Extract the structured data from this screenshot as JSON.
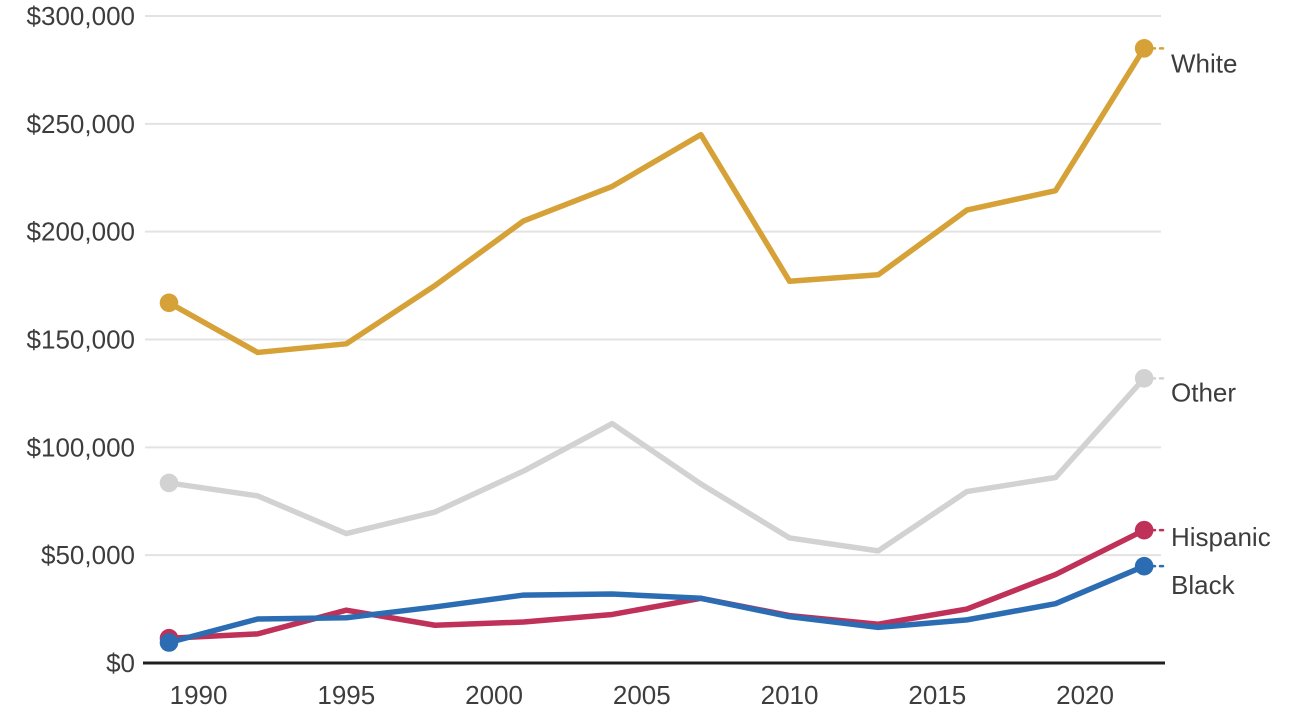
{
  "chart_data": {
    "type": "line",
    "title": "",
    "xlabel": "",
    "ylabel": "",
    "unit_format": "$#,###",
    "x": [
      1989,
      1992,
      1995,
      1998,
      2001,
      2004,
      2007,
      2010,
      2013,
      2016,
      2019,
      2022
    ],
    "series": [
      {
        "name": "White",
        "color": "#D6A136",
        "values": [
          167000,
          144000,
          148000,
          175000,
          205000,
          221000,
          245000,
          177000,
          180000,
          210000,
          219000,
          285000
        ]
      },
      {
        "name": "Other",
        "color": "#D2D2D2",
        "values": [
          83500,
          77500,
          60000,
          70000,
          89000,
          111000,
          83000,
          58000,
          52000,
          79500,
          86000,
          132000
        ]
      },
      {
        "name": "Hispanic",
        "color": "#BF3158",
        "values": [
          11500,
          13500,
          24500,
          17500,
          19000,
          22500,
          30000,
          22000,
          18000,
          25000,
          41000,
          61600
        ]
      },
      {
        "name": "Black",
        "color": "#2B6CB3",
        "values": [
          9500,
          20400,
          21000,
          26000,
          31500,
          32000,
          30000,
          21500,
          16500,
          20000,
          27500,
          44900
        ]
      }
    ],
    "y_ticks": [
      {
        "value": 0,
        "label": "$0"
      },
      {
        "value": 50000,
        "label": "$50,000"
      },
      {
        "value": 100000,
        "label": "$100,000"
      },
      {
        "value": 150000,
        "label": "$150,000"
      },
      {
        "value": 200000,
        "label": "$200,000"
      },
      {
        "value": 250000,
        "label": "$250,000"
      },
      {
        "value": 300000,
        "label": "$300,000"
      }
    ],
    "x_ticks": [
      {
        "value": 1990,
        "label": "1990"
      },
      {
        "value": 1995,
        "label": "1995"
      },
      {
        "value": 2000,
        "label": "2000"
      },
      {
        "value": 2005,
        "label": "2005"
      },
      {
        "value": 2010,
        "label": "2010"
      },
      {
        "value": 2015,
        "label": "2015"
      },
      {
        "value": 2020,
        "label": "2020"
      }
    ],
    "xlim": [
      1989,
      2022
    ],
    "ylim": [
      0,
      300000
    ],
    "grid": true,
    "legend_position": "right-end-labels",
    "markers": "start-and-end-dots"
  },
  "style": {
    "background": "#FFFFFF",
    "grid_color": "#E3E3E3",
    "axis_color": "#1F1F1F",
    "text_color": "#3D3D3D"
  }
}
